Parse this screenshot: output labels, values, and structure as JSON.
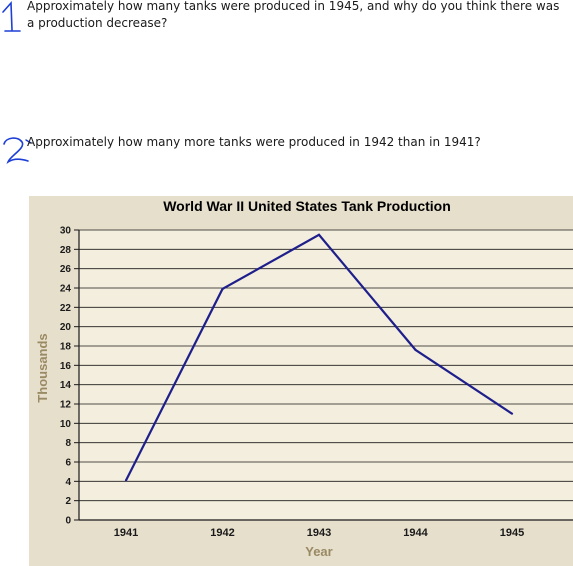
{
  "questions": [
    {
      "number": "1",
      "text": "Approximately how many tanks were produced in 1945, and why do you think there was a production decrease?"
    },
    {
      "number": "2",
      "text": "Approximately how many more tanks were produced in 1942 than in 1941?"
    }
  ],
  "colors": {
    "panel_background": "#e6dfcc",
    "plot_background": "#f3eedd",
    "gridline": "#1a1a1a",
    "line": "#1f1f8c",
    "axis_title": "#9a8a64",
    "handwriting": "#1d3fd6"
  },
  "chart_data": {
    "type": "line",
    "title": "World War II United States Tank Production",
    "xlabel": "Year",
    "ylabel": "Thousands",
    "categories": [
      "1941",
      "1942",
      "1943",
      "1944",
      "1945"
    ],
    "series": [
      {
        "values": [
          4.1,
          23.9,
          29.5,
          17.6,
          11.0
        ]
      }
    ],
    "ylim": [
      0,
      30
    ],
    "yticks": [
      "0",
      "2",
      "4",
      "6",
      "8",
      "10",
      "12",
      "14",
      "16",
      "18",
      "20",
      "22",
      "24",
      "26",
      "28",
      "30"
    ],
    "grid": true,
    "legend": "none"
  }
}
